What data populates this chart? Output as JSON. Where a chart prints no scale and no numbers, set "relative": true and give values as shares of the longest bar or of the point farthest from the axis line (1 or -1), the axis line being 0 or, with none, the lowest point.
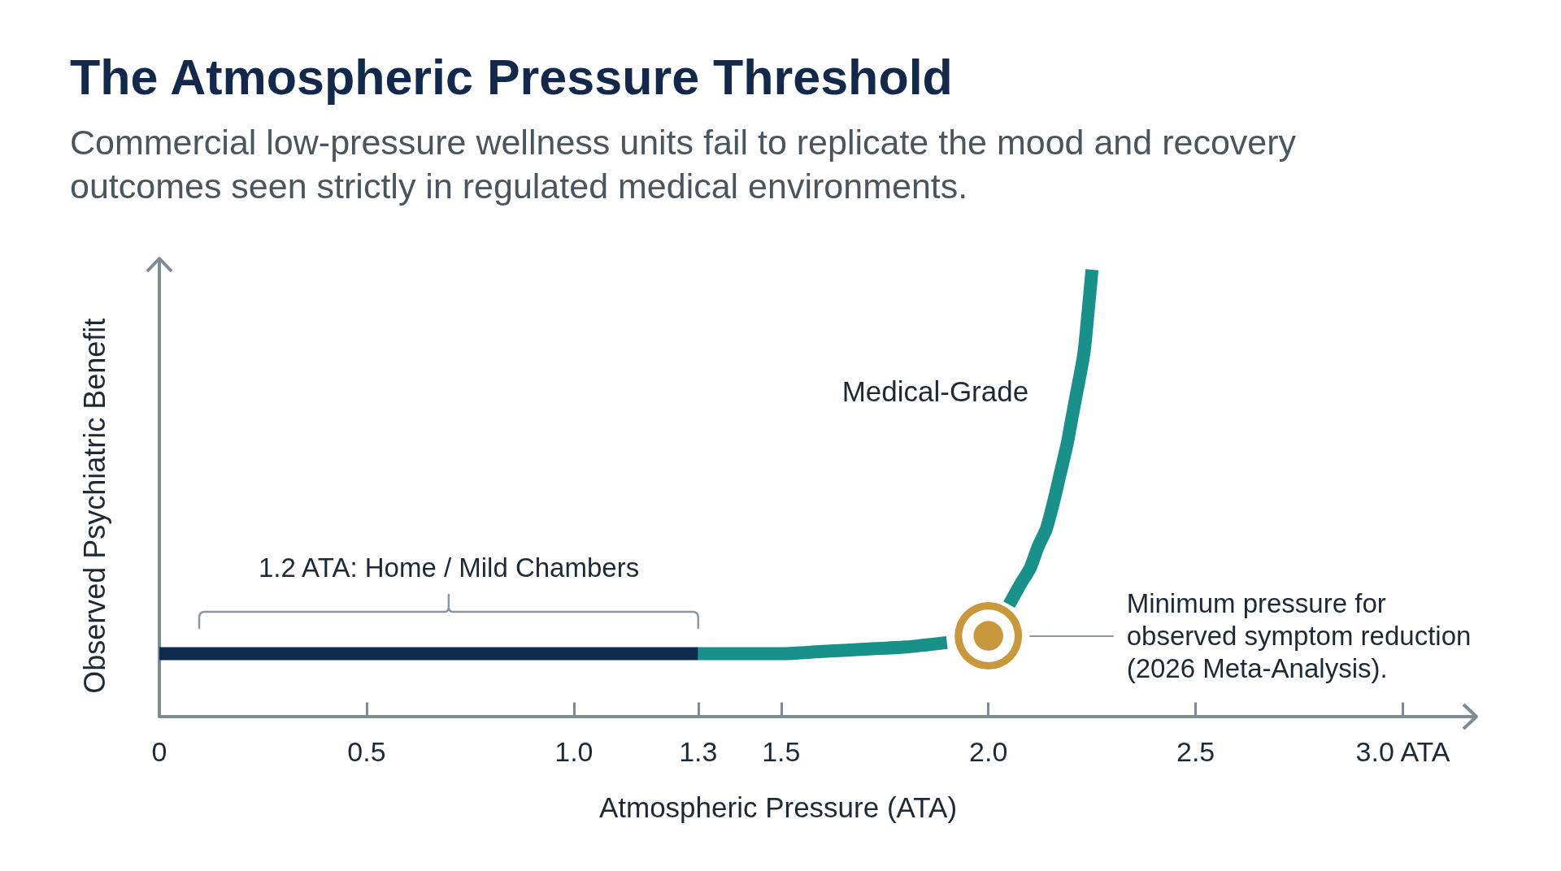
{
  "chart_data": {
    "type": "line",
    "title": "The Atmospheric Pressure Threshold",
    "subtitle": "Commercial low-pressure wellness units fail to replicate the mood and recovery outcomes seen strictly in regulated medical environments.",
    "xlabel": "Atmospheric Pressure (ATA)",
    "ylabel": "Observed Psychiatric Benefit",
    "relative": true,
    "tick_labels": "x",
    "line_style": "solid",
    "xlim": [
      0,
      3.15
    ],
    "xticks": [
      0,
      0.5,
      {
        "value": 1,
        "label": "1.0"
      },
      1.3,
      1.5,
      {
        "value": 2,
        "label": "2.0"
      },
      2.5,
      {
        "value": 3,
        "label": "3.0 ATA"
      }
    ],
    "series": [
      {
        "name": "1.2 ATA: Home / Mild Chambers",
        "color": "#0f2a4d",
        "x": [
          0,
          1.3
        ],
        "values": [
          0.14,
          0.14
        ]
      },
      {
        "name": "Medical-Grade",
        "color": "#17918a",
        "x": [
          1.3,
          1.4,
          1.5,
          1.6,
          1.7,
          1.8,
          1.9,
          2.0,
          2.05,
          2.08,
          2.1,
          2.12,
          2.14,
          2.16,
          2.17,
          2.19,
          2.2,
          2.21,
          2.23,
          2.24,
          2.25
        ],
        "values": [
          0.14,
          0.14,
          0.14,
          0.145,
          0.15,
          0.155,
          0.165,
          null,
          0.25,
          0.3,
          0.33,
          0.38,
          0.42,
          0.49,
          0.53,
          0.61,
          0.66,
          0.71,
          0.81,
          0.9,
          1.0
        ]
      },
      {
        "type": "scatter",
        "color": "#c9983c",
        "x": [
          2.0
        ],
        "values": [
          0.18
        ],
        "marker": "circle"
      }
    ],
    "annotations": [
      "Minimum pressure for\nobserved symptom reduction\n(2026 Meta-Analysis)."
    ]
  }
}
